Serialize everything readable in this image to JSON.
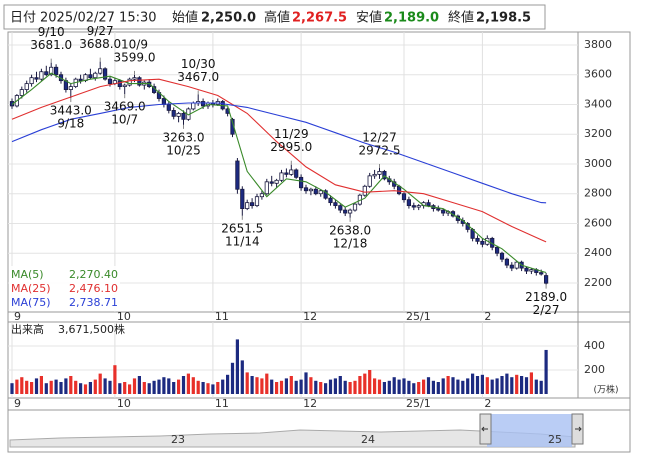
{
  "header": {
    "date_label": "日付",
    "datetime": "2025/02/27 15:30",
    "open_label": "始値",
    "open": "2,250.0",
    "high_label": "高値",
    "high": "2,267.5",
    "low_label": "安値",
    "low": "2,189.0",
    "close_label": "終値",
    "close": "2,198.5"
  },
  "navigator": {
    "labels": [
      "23",
      "24",
      "25"
    ]
  },
  "chart_data": {
    "type": "candlestick",
    "categories": [
      "9",
      null,
      null,
      null,
      null,
      null,
      null,
      null,
      null,
      null,
      null,
      null,
      null,
      null,
      null,
      null,
      null,
      null,
      null,
      null,
      null,
      "10",
      null,
      null,
      null,
      null,
      null,
      null,
      null,
      null,
      null,
      null,
      null,
      null,
      null,
      null,
      null,
      null,
      null,
      null,
      null,
      "11",
      null,
      null,
      null,
      null,
      null,
      null,
      null,
      null,
      null,
      null,
      null,
      null,
      null,
      null,
      null,
      null,
      null,
      "12",
      null,
      null,
      null,
      null,
      null,
      null,
      null,
      null,
      null,
      null,
      null,
      null,
      null,
      null,
      null,
      null,
      null,
      null,
      null,
      null,
      "25/1",
      null,
      null,
      null,
      null,
      null,
      null,
      null,
      null,
      null,
      null,
      null,
      null,
      null,
      null,
      null,
      "2",
      null,
      null,
      null,
      null,
      null,
      null,
      null,
      null,
      null,
      null,
      null,
      null,
      null
    ],
    "candles": [
      [
        3420,
        3440,
        3370,
        3390
      ],
      [
        3390,
        3470,
        3380,
        3460
      ],
      [
        3460,
        3520,
        3440,
        3500
      ],
      [
        3500,
        3560,
        3480,
        3540
      ],
      [
        3540,
        3600,
        3520,
        3580
      ],
      [
        3580,
        3620,
        3550,
        3570
      ],
      [
        3570,
        3640,
        3560,
        3620
      ],
      [
        3620,
        3660,
        3590,
        3600
      ],
      [
        3600,
        3681,
        3590,
        3650
      ],
      [
        3650,
        3670,
        3580,
        3600
      ],
      [
        3600,
        3620,
        3540,
        3560
      ],
      [
        3560,
        3580,
        3480,
        3500
      ],
      [
        3500,
        3540,
        3443,
        3520
      ],
      [
        3520,
        3580,
        3510,
        3570
      ],
      [
        3570,
        3600,
        3540,
        3560
      ],
      [
        3560,
        3610,
        3550,
        3600
      ],
      [
        3600,
        3640,
        3570,
        3580
      ],
      [
        3580,
        3620,
        3560,
        3610
      ],
      [
        3610,
        3688,
        3600,
        3640
      ],
      [
        3640,
        3650,
        3560,
        3570
      ],
      [
        3570,
        3590,
        3520,
        3540
      ],
      [
        3540,
        3580,
        3530,
        3560
      ],
      [
        3560,
        3570,
        3500,
        3520
      ],
      [
        3520,
        3540,
        3469,
        3530
      ],
      [
        3530,
        3580,
        3520,
        3570
      ],
      [
        3570,
        3599,
        3550,
        3580
      ],
      [
        3580,
        3590,
        3520,
        3530
      ],
      [
        3530,
        3560,
        3500,
        3550
      ],
      [
        3550,
        3570,
        3510,
        3520
      ],
      [
        3520,
        3540,
        3470,
        3480
      ],
      [
        3480,
        3500,
        3420,
        3440
      ],
      [
        3440,
        3460,
        3380,
        3400
      ],
      [
        3400,
        3420,
        3340,
        3360
      ],
      [
        3360,
        3380,
        3300,
        3320
      ],
      [
        3320,
        3350,
        3280,
        3340
      ],
      [
        3340,
        3360,
        3263,
        3300
      ],
      [
        3300,
        3380,
        3290,
        3370
      ],
      [
        3370,
        3420,
        3360,
        3410
      ],
      [
        3410,
        3467,
        3390,
        3420
      ],
      [
        3420,
        3440,
        3370,
        3390
      ],
      [
        3390,
        3420,
        3370,
        3410
      ],
      [
        3410,
        3430,
        3380,
        3400
      ],
      [
        3400,
        3440,
        3390,
        3420
      ],
      [
        3420,
        3430,
        3360,
        3370
      ],
      [
        3370,
        3380,
        3320,
        3340
      ],
      [
        3300,
        3310,
        3180,
        3200
      ],
      [
        3020,
        3040,
        2800,
        2830
      ],
      [
        2830,
        2850,
        2651.5,
        2700
      ],
      [
        2700,
        2760,
        2690,
        2740
      ],
      [
        2740,
        2770,
        2700,
        2720
      ],
      [
        2720,
        2800,
        2710,
        2780
      ],
      [
        2780,
        2820,
        2760,
        2800
      ],
      [
        2800,
        2900,
        2790,
        2880
      ],
      [
        2880,
        2920,
        2850,
        2870
      ],
      [
        2870,
        2900,
        2840,
        2890
      ],
      [
        2890,
        2960,
        2880,
        2940
      ],
      [
        2940,
        2970,
        2910,
        2930
      ],
      [
        2930,
        2995,
        2920,
        2960
      ],
      [
        2960,
        2970,
        2900,
        2910
      ],
      [
        2910,
        2930,
        2820,
        2840
      ],
      [
        2840,
        2860,
        2800,
        2820
      ],
      [
        2820,
        2840,
        2790,
        2830
      ],
      [
        2830,
        2850,
        2790,
        2800
      ],
      [
        2800,
        2830,
        2780,
        2820
      ],
      [
        2820,
        2830,
        2760,
        2770
      ],
      [
        2770,
        2790,
        2720,
        2740
      ],
      [
        2740,
        2760,
        2700,
        2720
      ],
      [
        2720,
        2730,
        2670,
        2690
      ],
      [
        2690,
        2710,
        2650,
        2670
      ],
      [
        2670,
        2700,
        2638,
        2690
      ],
      [
        2690,
        2740,
        2680,
        2730
      ],
      [
        2730,
        2800,
        2720,
        2790
      ],
      [
        2790,
        2860,
        2780,
        2850
      ],
      [
        2850,
        2940,
        2840,
        2920
      ],
      [
        2920,
        2960,
        2900,
        2930
      ],
      [
        2930,
        2972.5,
        2900,
        2950
      ],
      [
        2950,
        2960,
        2890,
        2900
      ],
      [
        2900,
        2920,
        2860,
        2880
      ],
      [
        2880,
        2900,
        2830,
        2850
      ],
      [
        2850,
        2860,
        2790,
        2800
      ],
      [
        2800,
        2810,
        2740,
        2760
      ],
      [
        2760,
        2780,
        2700,
        2720
      ],
      [
        2720,
        2740,
        2690,
        2710
      ],
      [
        2710,
        2730,
        2690,
        2720
      ],
      [
        2720,
        2750,
        2700,
        2740
      ],
      [
        2740,
        2760,
        2710,
        2720
      ],
      [
        2720,
        2730,
        2680,
        2700
      ],
      [
        2700,
        2720,
        2680,
        2690
      ],
      [
        2690,
        2700,
        2650,
        2670
      ],
      [
        2670,
        2690,
        2650,
        2680
      ],
      [
        2680,
        2690,
        2640,
        2650
      ],
      [
        2650,
        2660,
        2600,
        2620
      ],
      [
        2620,
        2640,
        2580,
        2600
      ],
      [
        2600,
        2610,
        2540,
        2560
      ],
      [
        2560,
        2570,
        2480,
        2500
      ],
      [
        2500,
        2520,
        2460,
        2480
      ],
      [
        2480,
        2500,
        2440,
        2460
      ],
      [
        2460,
        2520,
        2450,
        2500
      ],
      [
        2500,
        2510,
        2420,
        2440
      ],
      [
        2440,
        2450,
        2380,
        2400
      ],
      [
        2400,
        2410,
        2340,
        2360
      ],
      [
        2360,
        2370,
        2300,
        2320
      ],
      [
        2320,
        2340,
        2280,
        2300
      ],
      [
        2300,
        2350,
        2290,
        2340
      ],
      [
        2340,
        2350,
        2280,
        2300
      ],
      [
        2300,
        2310,
        2260,
        2280
      ],
      [
        2280,
        2300,
        2260,
        2290
      ],
      [
        2290,
        2300,
        2250,
        2270
      ],
      [
        2270,
        2290,
        2250,
        2260
      ],
      [
        2250,
        2267.5,
        2189,
        2198.5
      ]
    ],
    "up_color": "#ffffff",
    "down_color": "#1c2a80",
    "edge_color": "#1a1a40",
    "ylim": [
      2005,
      3887
    ],
    "yticks": [
      2200,
      2400,
      2600,
      2800,
      3000,
      3200,
      3400,
      3600,
      3800
    ],
    "grid": true,
    "series": [
      {
        "name": "MA(5)",
        "color": "#3a8a2a",
        "value_label": "2,270.40",
        "x": [
          0,
          4,
          8,
          12,
          16,
          20,
          24,
          28,
          32,
          36,
          40,
          44,
          48,
          52,
          56,
          60,
          64,
          68,
          72,
          76,
          80,
          84,
          88,
          92,
          96,
          100,
          104,
          108,
          109
        ],
        "values": [
          3400,
          3500,
          3610,
          3540,
          3570,
          3590,
          3540,
          3540,
          3420,
          3330,
          3400,
          3390,
          2950,
          2780,
          2900,
          2880,
          2810,
          2710,
          2770,
          2920,
          2830,
          2720,
          2700,
          2620,
          2500,
          2430,
          2320,
          2280,
          2270.4
        ]
      },
      {
        "name": "MA(25)",
        "color": "#e03030",
        "value_label": "2,476.10",
        "x": [
          0,
          6,
          12,
          18,
          24,
          30,
          36,
          42,
          48,
          54,
          60,
          66,
          72,
          78,
          84,
          90,
          96,
          102,
          108,
          109
        ],
        "values": [
          3300,
          3380,
          3450,
          3520,
          3560,
          3570,
          3520,
          3460,
          3340,
          3150,
          2980,
          2860,
          2810,
          2820,
          2800,
          2740,
          2680,
          2580,
          2490,
          2476.1
        ]
      },
      {
        "name": "MA(75)",
        "color": "#2a3fd6",
        "value_label": "2,738.71",
        "x": [
          0,
          6,
          12,
          18,
          24,
          30,
          36,
          42,
          48,
          54,
          60,
          66,
          72,
          78,
          84,
          90,
          96,
          102,
          108,
          109
        ],
        "values": [
          3150,
          3230,
          3300,
          3340,
          3380,
          3400,
          3410,
          3410,
          3380,
          3330,
          3280,
          3210,
          3140,
          3080,
          3010,
          2940,
          2870,
          2800,
          2740,
          2738.71
        ]
      }
    ],
    "annotations": [
      {
        "date": "9/10",
        "value": 3681,
        "label": "3681.0"
      },
      {
        "date": "9/18",
        "value": 3443,
        "label": "3443.0"
      },
      {
        "date": "9/27",
        "value": 3688,
        "label": "3688.0"
      },
      {
        "date": "10/9",
        "value": 3599,
        "label": "3599.0"
      },
      {
        "date": "10/7",
        "value": 3469,
        "label": "3469.0"
      },
      {
        "date": "10/25",
        "value": 3263,
        "label": "3263.0"
      },
      {
        "date": "10/30",
        "value": 3467,
        "label": "3467.0"
      },
      {
        "date": "11/14",
        "value": 2651.5,
        "label": "2651.5"
      },
      {
        "date": "11/29",
        "value": 2995,
        "label": "2995.0"
      },
      {
        "date": "12/18",
        "value": 2638,
        "label": "2638.0"
      },
      {
        "date": "12/27",
        "value": 2972.5,
        "label": "2972.5"
      },
      {
        "date": "2/27",
        "value": 2189,
        "label": "2189.0"
      }
    ],
    "volume": {
      "label": "出来高",
      "total": "3,671,500株",
      "unit": "(万株)",
      "up_color": "#e8302a",
      "down_color": "#1c2a80",
      "ylim": [
        0,
        600
      ],
      "yticks": [
        200,
        400
      ],
      "values": [
        90,
        120,
        140,
        110,
        100,
        130,
        150,
        90,
        110,
        120,
        100,
        130,
        150,
        110,
        90,
        80,
        100,
        120,
        170,
        130,
        110,
        240,
        90,
        100,
        80,
        130,
        150,
        100,
        90,
        110,
        120,
        140,
        130,
        100,
        120,
        150,
        170,
        140,
        110,
        100,
        90,
        80,
        100,
        120,
        160,
        260,
        455,
        280,
        180,
        150,
        140,
        130,
        170,
        120,
        100,
        110,
        130,
        150,
        110,
        120,
        180,
        140,
        110,
        100,
        90,
        120,
        130,
        150,
        110,
        100,
        110,
        150,
        170,
        200,
        130,
        120,
        100,
        110,
        140,
        120,
        130,
        110,
        90,
        100,
        120,
        140,
        110,
        100,
        130,
        150,
        140,
        120,
        110,
        130,
        170,
        150,
        160,
        140,
        120,
        130,
        150,
        170,
        140,
        160,
        150,
        140,
        180,
        120,
        110,
        367.15
      ]
    }
  }
}
